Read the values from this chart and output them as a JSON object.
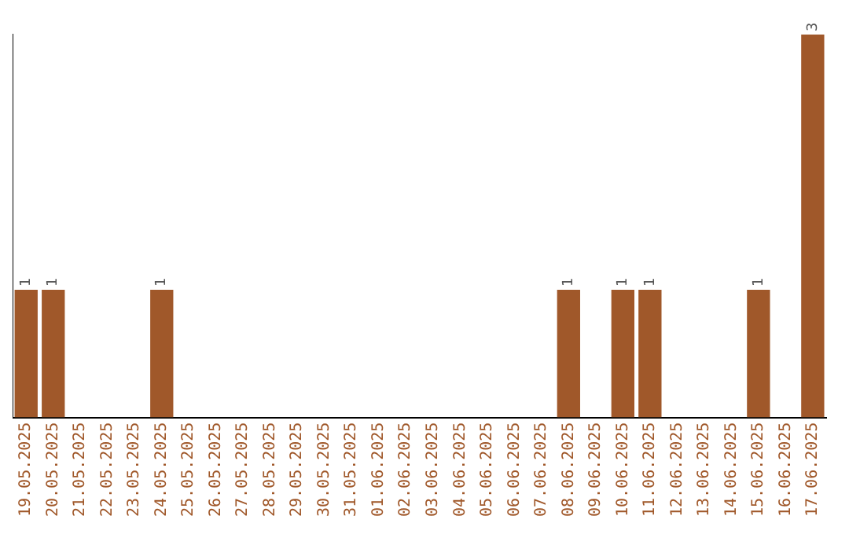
{
  "chart_data": {
    "type": "bar",
    "categories": [
      "19.05.2025",
      "20.05.2025",
      "21.05.2025",
      "22.05.2025",
      "23.05.2025",
      "24.05.2025",
      "25.05.2025",
      "26.05.2025",
      "27.05.2025",
      "28.05.2025",
      "29.05.2025",
      "30.05.2025",
      "31.05.2025",
      "01.06.2025",
      "02.06.2025",
      "03.06.2025",
      "04.06.2025",
      "05.06.2025",
      "06.06.2025",
      "07.06.2025",
      "08.06.2025",
      "09.06.2025",
      "10.06.2025",
      "11.06.2025",
      "12.06.2025",
      "13.06.2025",
      "14.06.2025",
      "15.06.2025",
      "16.06.2025",
      "17.06.2025"
    ],
    "values": [
      1,
      1,
      0,
      0,
      0,
      1,
      0,
      0,
      0,
      0,
      0,
      0,
      0,
      0,
      0,
      0,
      0,
      0,
      0,
      0,
      1,
      0,
      1,
      1,
      0,
      0,
      0,
      1,
      0,
      3
    ],
    "value_labels": [
      "1",
      "1",
      null,
      null,
      null,
      "1",
      null,
      null,
      null,
      null,
      null,
      null,
      null,
      null,
      null,
      null,
      null,
      null,
      null,
      null,
      "1",
      null,
      "1",
      "1",
      null,
      null,
      null,
      "1",
      null,
      "3"
    ],
    "color": "#a0582a",
    "grid": false,
    "legend": false,
    "tick_labels": "x"
  }
}
